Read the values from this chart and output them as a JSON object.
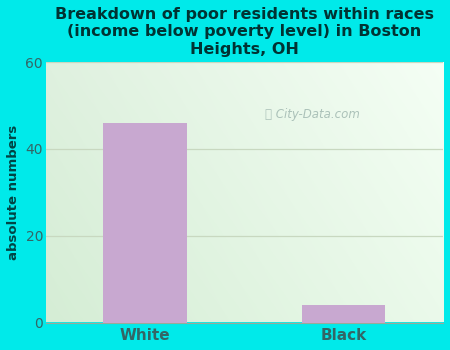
{
  "categories": [
    "White",
    "Black"
  ],
  "values": [
    46,
    4
  ],
  "bar_color": "#c8a8d0",
  "title": "Breakdown of poor residents within races\n(income below poverty level) in Boston\nHeights, OH",
  "title_color": "#003333",
  "ylabel": "absolute numbers",
  "ylabel_color": "#004444",
  "ylim": [
    0,
    60
  ],
  "yticks": [
    0,
    20,
    40,
    60
  ],
  "bg_color": "#00eaea",
  "plot_grad_topleft": "#e0ede0",
  "plot_grad_topright": "#f5fff5",
  "plot_grad_bottomleft": "#d8edd8",
  "plot_grad_bottomright": "#edfaed",
  "grid_color": "#c8d8c0",
  "tick_label_color": "#336666",
  "watermark": "City-Data.com",
  "watermark_color": "#a0b8b0",
  "title_fontsize": 11.5,
  "bar_width": 0.42
}
